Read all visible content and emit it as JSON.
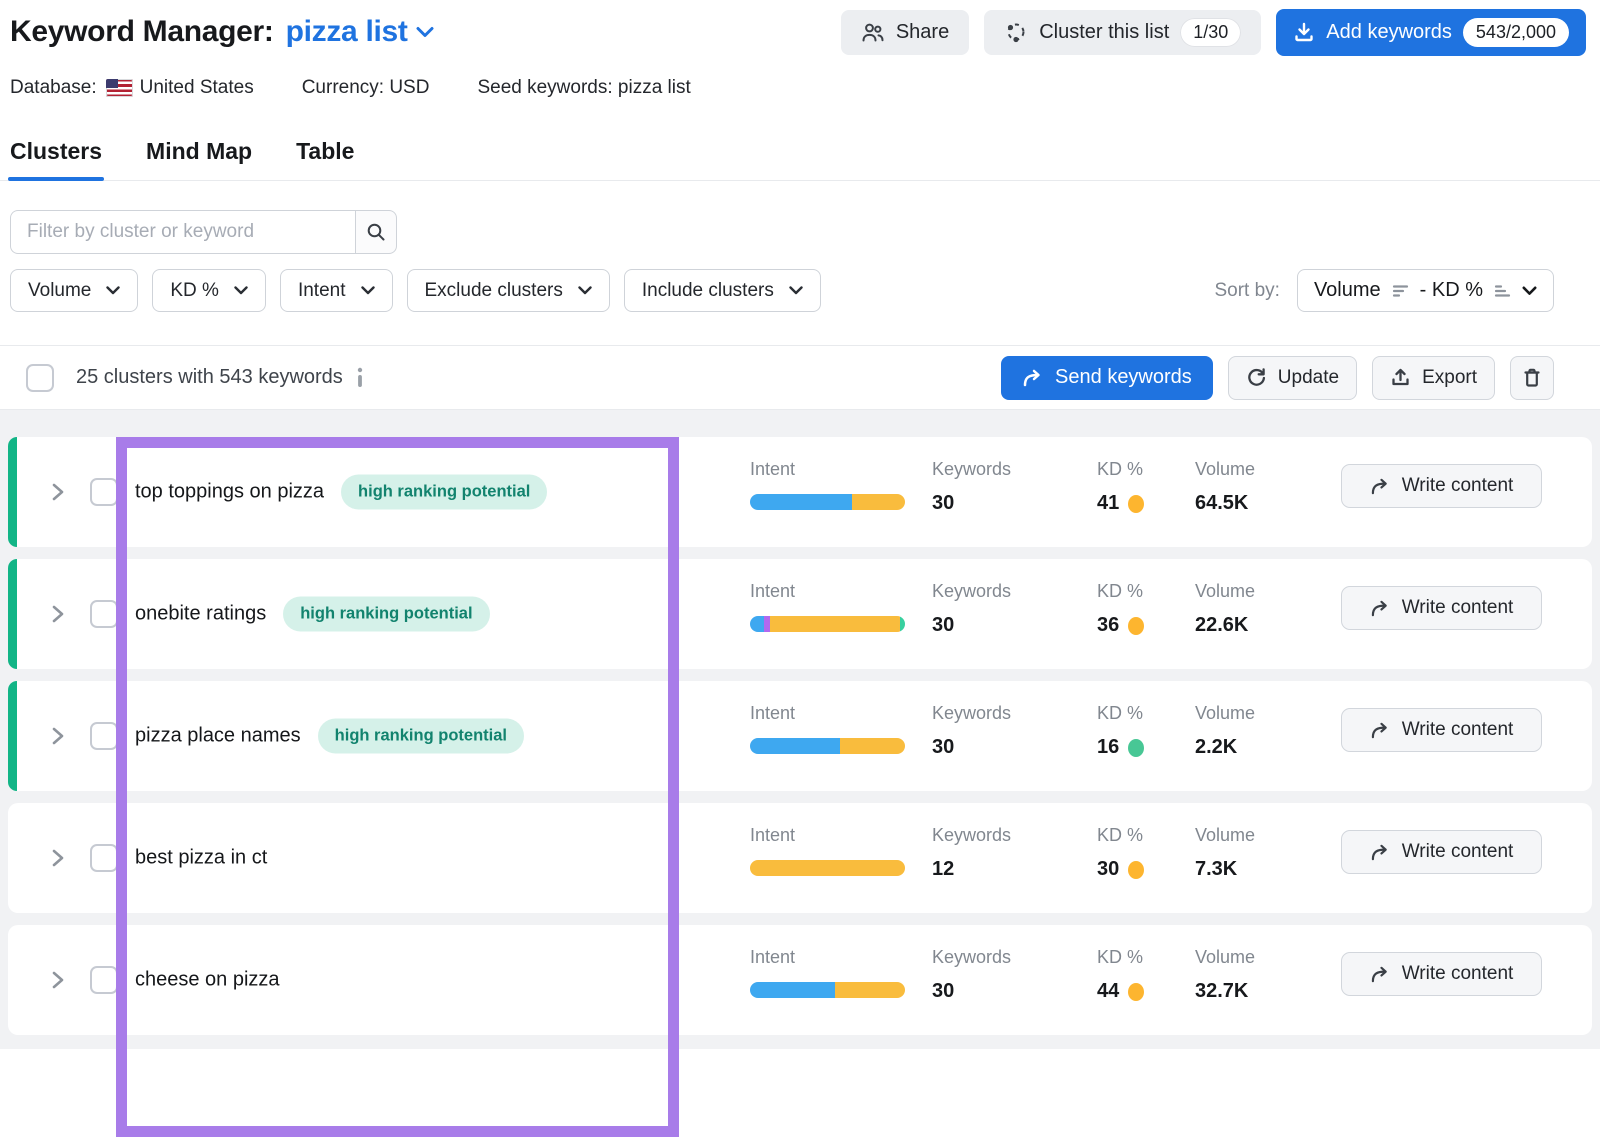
{
  "header": {
    "title": "Keyword Manager:",
    "list_name": "pizza list",
    "share_label": "Share",
    "cluster_button_label": "Cluster this list",
    "cluster_badge": "1/30",
    "add_keywords_label": "Add keywords",
    "add_keywords_badge": "543/2,000"
  },
  "meta": {
    "database_label": "Database:",
    "database_value": "United States",
    "currency": "Currency: USD",
    "seed_keywords": "Seed keywords: pizza list"
  },
  "tabs": [
    {
      "label": "Clusters",
      "active": true
    },
    {
      "label": "Mind Map",
      "active": false
    },
    {
      "label": "Table",
      "active": false
    }
  ],
  "filter": {
    "placeholder": "Filter by cluster or keyword"
  },
  "filter_chips": [
    "Volume",
    "KD %",
    "Intent",
    "Exclude clusters",
    "Include clusters"
  ],
  "sort": {
    "label": "Sort by:",
    "primary": "Volume",
    "secondary": "- KD %"
  },
  "toolbar": {
    "summary": "25 clusters with 543 keywords",
    "send_label": "Send keywords",
    "update_label": "Update",
    "export_label": "Export"
  },
  "columns": {
    "intent": "Intent",
    "keywords": "Keywords",
    "kd": "KD %",
    "volume": "Volume"
  },
  "badge_label": "high ranking potential",
  "row_action_label": "Write content",
  "rows": [
    {
      "name": "top toppings on pizza",
      "high_ranking": true,
      "accent": true,
      "keywords": "30",
      "kd": "41",
      "kd_level": "medium",
      "volume": "64.5K",
      "intent_segments": [
        {
          "type": "informational",
          "pct": 66
        },
        {
          "type": "commercial",
          "pct": 34
        }
      ]
    },
    {
      "name": "onebite ratings",
      "high_ranking": true,
      "accent": true,
      "keywords": "30",
      "kd": "36",
      "kd_level": "medium",
      "volume": "22.6K",
      "intent_segments": [
        {
          "type": "informational",
          "pct": 9
        },
        {
          "type": "navigational",
          "pct": 4
        },
        {
          "type": "commercial",
          "pct": 84
        },
        {
          "type": "transactional",
          "pct": 3
        }
      ]
    },
    {
      "name": "pizza place names",
      "high_ranking": true,
      "accent": true,
      "keywords": "30",
      "kd": "16",
      "kd_level": "easy",
      "volume": "2.2K",
      "intent_segments": [
        {
          "type": "informational",
          "pct": 58
        },
        {
          "type": "commercial",
          "pct": 42
        }
      ]
    },
    {
      "name": "best pizza in ct",
      "high_ranking": false,
      "accent": false,
      "keywords": "12",
      "kd": "30",
      "kd_level": "medium",
      "volume": "7.3K",
      "intent_segments": [
        {
          "type": "commercial",
          "pct": 100
        }
      ]
    },
    {
      "name": "cheese on pizza",
      "high_ranking": false,
      "accent": false,
      "keywords": "30",
      "kd": "44",
      "kd_level": "medium",
      "volume": "32.7K",
      "intent_segments": [
        {
          "type": "informational",
          "pct": 55
        },
        {
          "type": "commercial",
          "pct": 45
        }
      ]
    }
  ],
  "colors": {
    "accent_blue": "#1f73e0",
    "row_accent_green": "#12b586",
    "annotation_purple": "#a87ce9",
    "badge_bg": "#d5f1e9",
    "badge_text": "#12836e",
    "intent": {
      "informational": "#3ea8f0",
      "commercial": "#f9bc3d",
      "navigational": "#b168ef",
      "transactional": "#38d09f"
    },
    "kd": {
      "medium": "#fdb52f",
      "easy": "#48c795"
    }
  }
}
